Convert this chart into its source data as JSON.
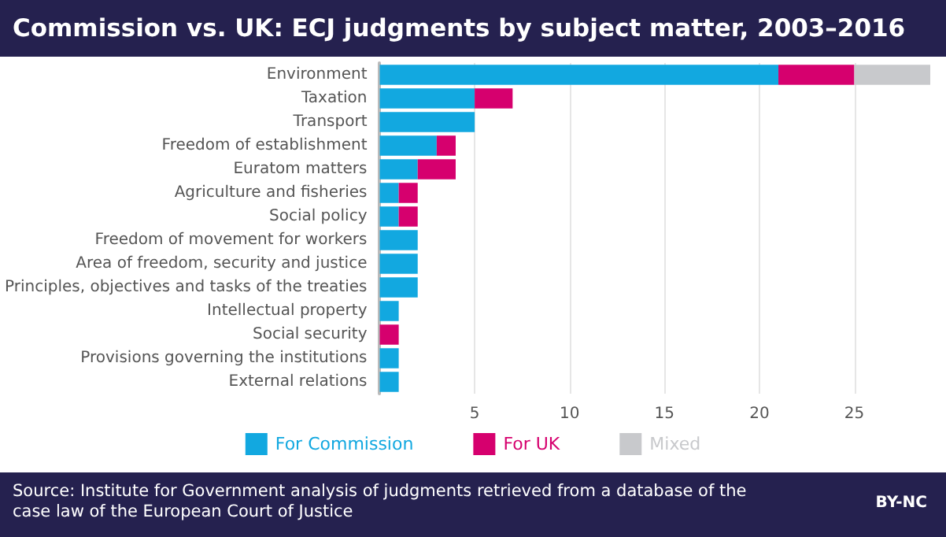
{
  "chart_data": {
    "type": "bar",
    "orientation": "horizontal",
    "stacked": true,
    "title": "Commission vs. UK: ECJ judgments by subject matter, 2003–2016",
    "categories": [
      "Environment",
      "Taxation",
      "Transport",
      "Freedom of establishment",
      "Euratom matters",
      "Agriculture and fisheries",
      "Social policy",
      "Freedom of movement for workers",
      "Area of freedom, security and justice",
      "Principles, objectives and tasks of the treaties",
      "Intellectual property",
      "Social security",
      "Provisions governing the institutions",
      "External relations"
    ],
    "series": [
      {
        "name": "For Commission",
        "color": "#12a8e0",
        "values": [
          21,
          5,
          5,
          3,
          2,
          1,
          1,
          2,
          2,
          2,
          1,
          0,
          1,
          1
        ]
      },
      {
        "name": "For UK",
        "color": "#d6006e",
        "values": [
          4,
          2,
          0,
          1,
          2,
          1,
          1,
          0,
          0,
          0,
          0,
          1,
          0,
          0
        ]
      },
      {
        "name": "Mixed",
        "color": "#c8c9cc",
        "values": [
          4,
          0,
          0,
          0,
          0,
          0,
          0,
          0,
          0,
          0,
          0,
          0,
          0,
          0
        ]
      }
    ],
    "xlim": [
      0,
      29
    ],
    "xticks": [
      5,
      10,
      15,
      20,
      25
    ],
    "grid": "x",
    "legend": "bottom",
    "annotations": [
      "Source:  Institute for Government analysis of judgments retrieved from a database of the case law of the European Court of Justice",
      "BY-NC"
    ]
  }
}
